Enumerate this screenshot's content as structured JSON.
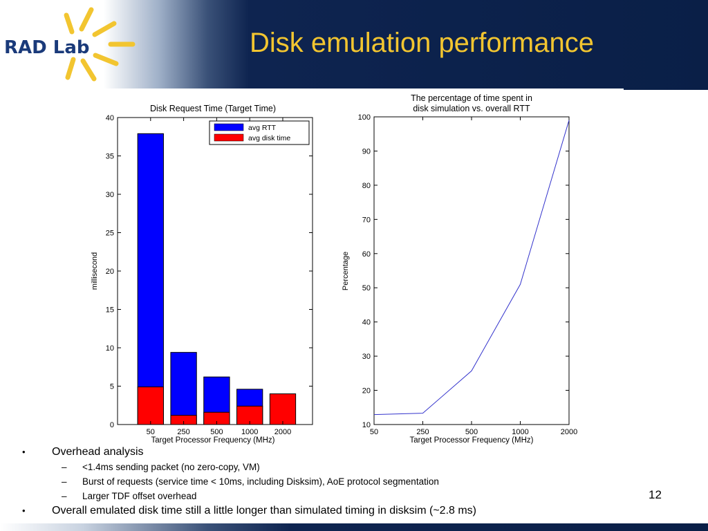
{
  "slide": {
    "title": "Disk emulation performance",
    "logo_text": "RAD Lab",
    "page_number": "12"
  },
  "bullets": [
    {
      "level": 1,
      "text": "Overhead analysis"
    },
    {
      "level": 2,
      "text": "<1.4ms sending packet (no zero-copy, VM)"
    },
    {
      "level": 2,
      "text": "Burst of requests (service time < 10ms, including Disksim), AoE protocol segmentation"
    },
    {
      "level": 2,
      "text": "Larger TDF offset overhead"
    },
    {
      "level": 1,
      "text": "Overall emulated disk time still a little longer than simulated timing in disksim (~2.8 ms)"
    }
  ],
  "bullet_marks": {
    "level1": "•",
    "level2": "–"
  },
  "colors": {
    "title": "#f2c530",
    "header_dark": "#0a1f47",
    "avg_rtt": "#0000ff",
    "avg_disk_time": "#ff0000",
    "line": "#3333cc"
  },
  "chart_data": [
    {
      "type": "bar",
      "title": "Disk Request Time (Target Time)",
      "xlabel": "Target Processor Frequency (MHz)",
      "ylabel": "millisecond",
      "categories": [
        "50",
        "250",
        "500",
        "1000",
        "2000"
      ],
      "series": [
        {
          "name": "avg RTT",
          "values": [
            37.9,
            9.4,
            6.2,
            4.6,
            0
          ]
        },
        {
          "name": "avg disk time",
          "values": [
            4.9,
            1.2,
            1.6,
            2.4,
            4.0
          ]
        }
      ],
      "ylim": [
        0,
        40
      ],
      "yticks": [
        0,
        5,
        10,
        15,
        20,
        25,
        30,
        35,
        40
      ],
      "legend": "top-right",
      "grid": false
    },
    {
      "type": "line",
      "title": [
        "The percentage of time spent in",
        "disk simulation vs. overall RTT"
      ],
      "xlabel": "Target Processor Frequency (MHz)",
      "ylabel": "Percentage",
      "x": [
        "50",
        "250",
        "500",
        "1000",
        "2000"
      ],
      "series": [
        {
          "values": [
            12.9,
            13.3,
            25.7,
            51.0,
            99.0
          ]
        }
      ],
      "ylim": [
        10,
        100
      ],
      "yticks": [
        10,
        20,
        30,
        40,
        50,
        60,
        70,
        80,
        90,
        100
      ],
      "grid": false
    }
  ]
}
